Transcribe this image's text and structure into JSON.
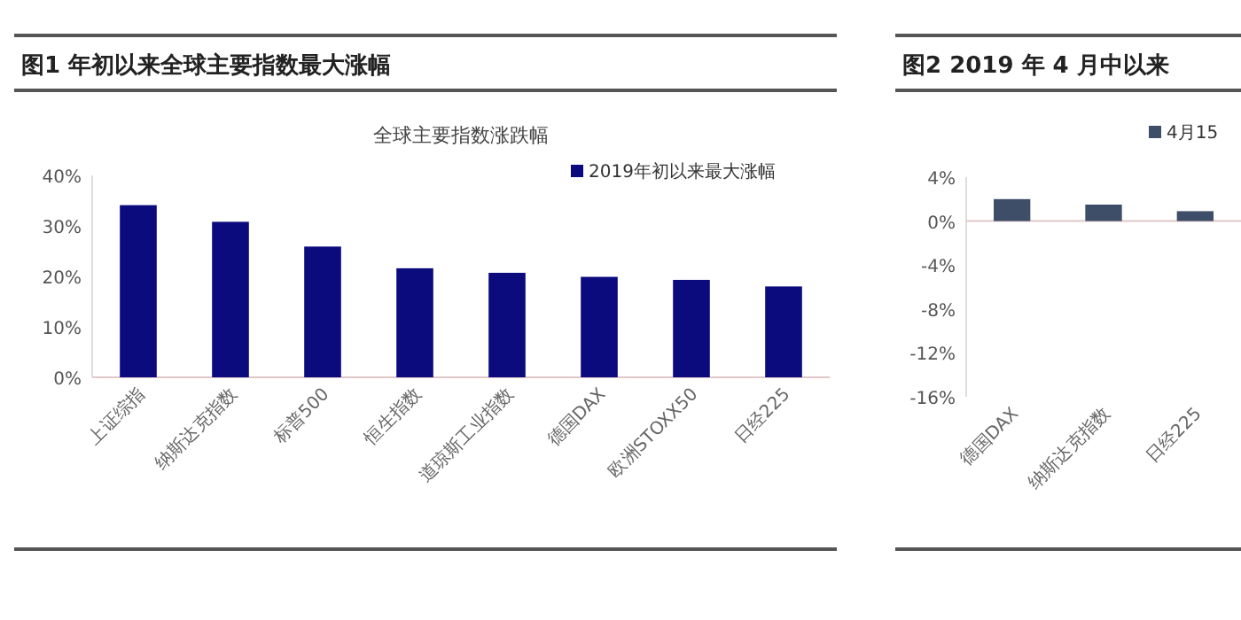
{
  "chart_data": [
    {
      "type": "bar",
      "title": "图1  年初以来全球主要指数最大涨幅",
      "subtitle": "全球主要指数涨跌幅",
      "categories": [
        "上证综指",
        "纳斯达克指数",
        "标普500",
        "恒生指数",
        "道琼斯工业指数",
        "德国DAX",
        "欧洲STOXX50",
        "日经225"
      ],
      "series": [
        {
          "name": "2019年初以来最大涨幅",
          "color": "#0b0b7e",
          "values": [
            34.1,
            30.8,
            25.9,
            21.6,
            20.7,
            19.9,
            19.3,
            18.0
          ]
        }
      ],
      "ylim": [
        0,
        40
      ],
      "yticks": [
        {
          "value": 0,
          "label": "0%"
        },
        {
          "value": 10,
          "label": "10%"
        },
        {
          "value": 20,
          "label": "20%"
        },
        {
          "value": 30,
          "label": "30%"
        },
        {
          "value": 40,
          "label": "40%"
        }
      ],
      "legend": "top right"
    },
    {
      "type": "bar",
      "title": "图2  2019 年 4 月中以来",
      "categories": [
        "德国DAX",
        "纳斯达克指数",
        "日经225"
      ],
      "series": [
        {
          "name": "4月15",
          "color": "#3e4d68",
          "values": [
            2.0,
            1.5,
            0.9
          ]
        }
      ],
      "ylim": [
        -16,
        4
      ],
      "yticks": [
        {
          "value": -16,
          "label": "-16%"
        },
        {
          "value": -12,
          "label": "-12%"
        },
        {
          "value": -8,
          "label": "-8%"
        },
        {
          "value": -4,
          "label": "-4%"
        },
        {
          "value": 0,
          "label": "0%"
        },
        {
          "value": 4,
          "label": "4%"
        }
      ],
      "legend": "top"
    }
  ]
}
